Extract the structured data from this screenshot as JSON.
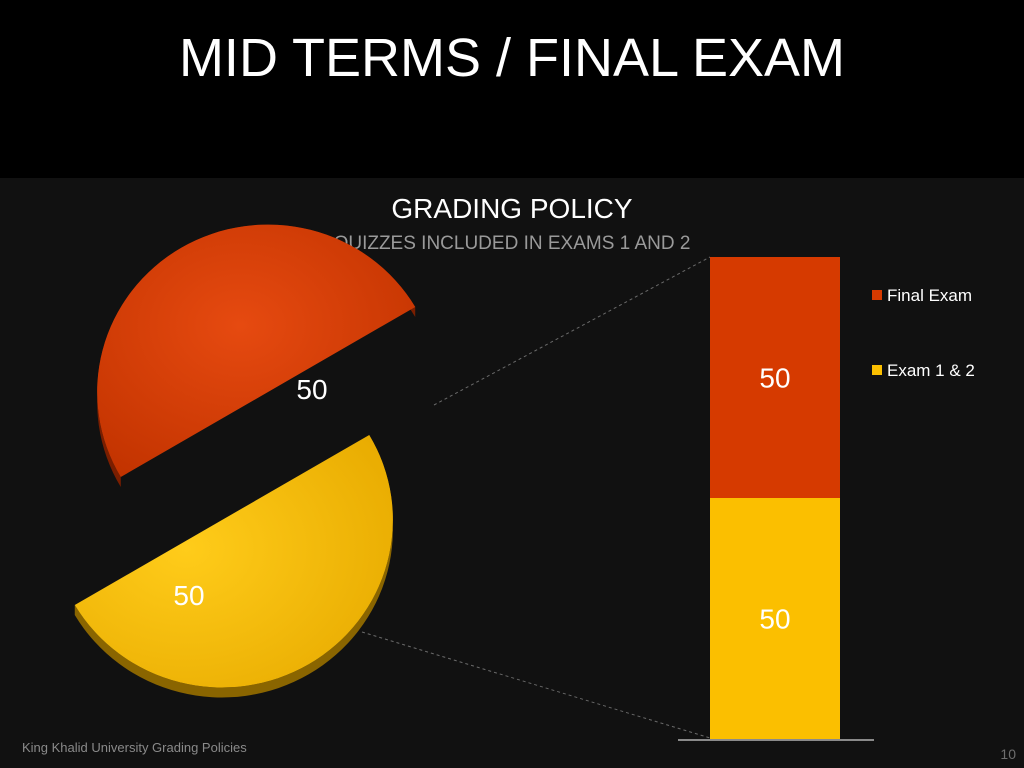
{
  "slide": {
    "title": "MID TERMS / FINAL EXAM",
    "footer": "King Khalid University Grading Policies",
    "page_number": "10"
  },
  "chart_data": {
    "type": "pie",
    "title": "GRADING POLICY",
    "subtitle": "QUIZZES INCLUDED IN EXAMS 1 AND 2",
    "series": [
      {
        "name": "Final Exam",
        "value": 50,
        "color": "#d63a00"
      },
      {
        "name": "Exam 1 & 2",
        "value": 50,
        "color": "#fbbf00"
      }
    ],
    "data_labels": [
      "50",
      "50"
    ],
    "secondary_chart": {
      "type": "bar",
      "stacked": true,
      "segments": [
        {
          "name": "Final Exam",
          "value": 50,
          "label": "50",
          "color": "#d63a00"
        },
        {
          "name": "Exam 1 & 2",
          "value": 50,
          "label": "50",
          "color": "#fbbf00"
        }
      ]
    },
    "legend": {
      "placement": "right",
      "items": [
        "Final Exam",
        "Exam 1 & 2"
      ]
    }
  }
}
